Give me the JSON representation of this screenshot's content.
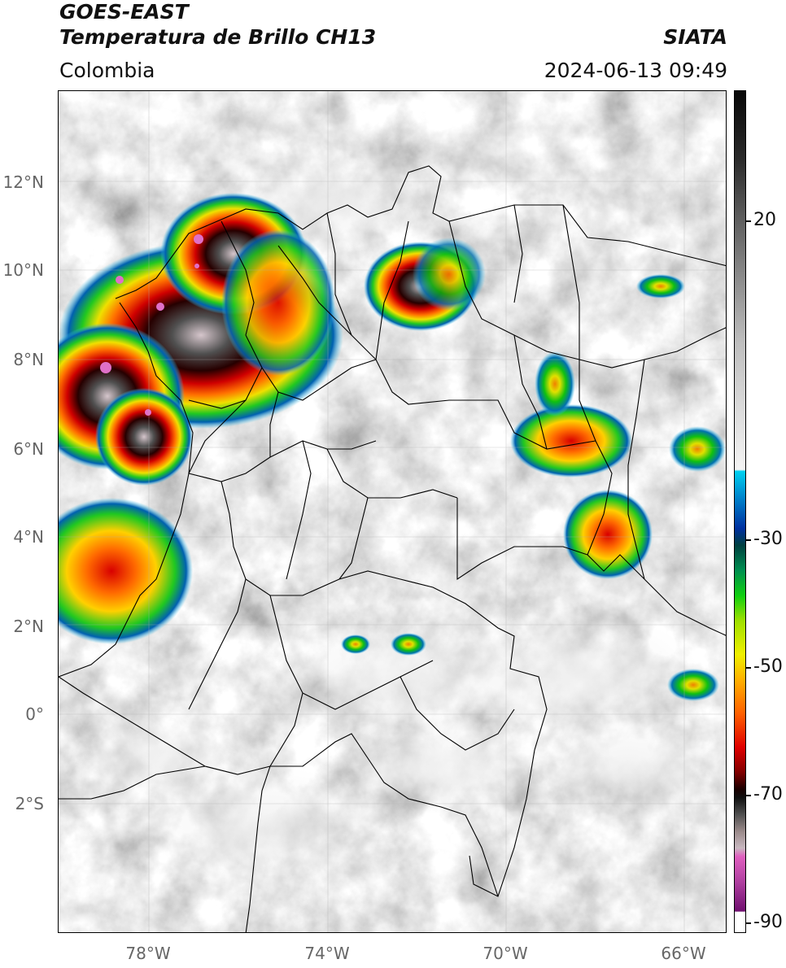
{
  "header": {
    "title_line1": "GOES-EAST",
    "title_line2": "Temperatura de Brillo CH13",
    "region": "Colombia",
    "brand": "SIATA",
    "datetime": "2024-06-13 09:49"
  },
  "map": {
    "lat_labels": [
      "12°N",
      "10°N",
      "8°N",
      "6°N",
      "4°N",
      "2°N",
      "0°",
      "2°S"
    ],
    "lon_labels": [
      "78°W",
      "74°W",
      "70°W",
      "66°W"
    ]
  },
  "colorbar": {
    "ticks": [
      "20",
      "-30",
      "-50",
      "-70",
      "-90"
    ],
    "colors": {
      "very_cold": "#b040a0",
      "cold_core": "#1a0000",
      "deep_convection": "#e00000",
      "moderate": "#10d010",
      "cool": "#00d0f0",
      "warm": "#7d7d7d"
    }
  }
}
